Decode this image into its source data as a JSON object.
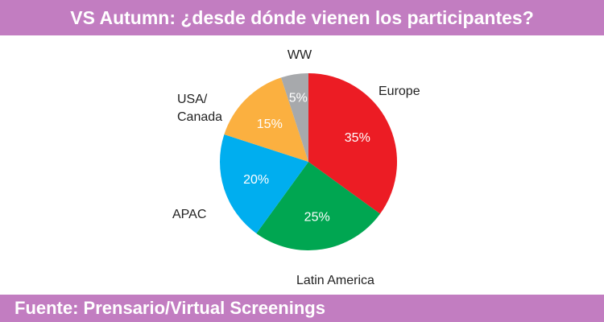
{
  "header": {
    "title": "VS Autumn: ¿desde dónde vienen los participantes?"
  },
  "footer": {
    "source": "Fuente: Prensario/Virtual Screenings"
  },
  "chart_data": {
    "type": "pie",
    "title": "VS Autumn: ¿desde dónde vienen los participantes?",
    "slices": [
      {
        "label": "Europe",
        "value": 35,
        "display": "35%",
        "color": "#ec1c24"
      },
      {
        "label": "Latin America",
        "value": 25,
        "display": "25%",
        "color": "#00a651"
      },
      {
        "label": "APAC",
        "value": 20,
        "display": "20%",
        "color": "#00aeef"
      },
      {
        "label": "USA/\nCanada",
        "value": 15,
        "display": "15%",
        "color": "#fbb040"
      },
      {
        "label": "WW",
        "value": 5,
        "display": "5%",
        "color": "#a7a9ac"
      }
    ]
  }
}
